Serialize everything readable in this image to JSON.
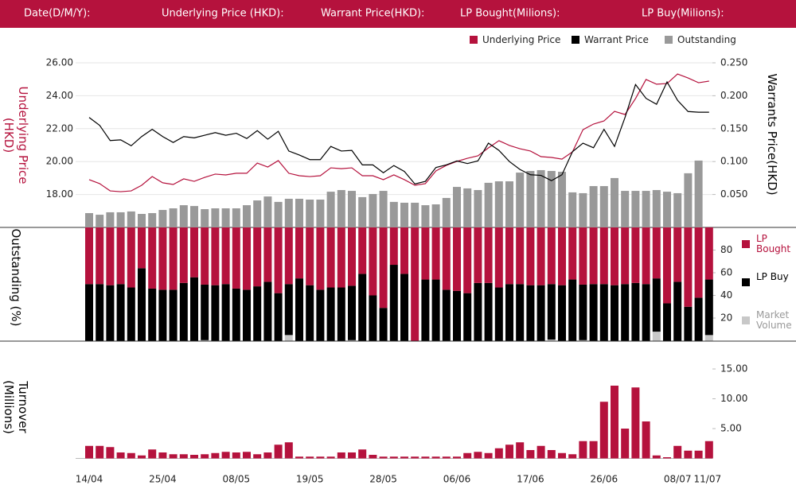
{
  "header": {
    "labels": [
      "Date(D/M/Y):",
      "Underlying Price (HKD):",
      "Warrant  Price(HKD):",
      "LP Bought(Milions):",
      "LP Buy(Milions):"
    ]
  },
  "chart_data": [
    {
      "type": "combo",
      "y_label": "Underlying Price (HKD)",
      "y2_label": "Warrants  Price(HKD)",
      "ylim": [
        16,
        26
      ],
      "yticks": [
        {
          "value": 18,
          "label": "18.00"
        },
        {
          "value": 20,
          "label": "20.00"
        },
        {
          "value": 22,
          "label": "22.00"
        },
        {
          "value": 24,
          "label": "24.00"
        },
        {
          "value": 26,
          "label": "26.00"
        }
      ],
      "y2lim": [
        0,
        0.25
      ],
      "y2ticks": [
        {
          "value": 0.05,
          "label": "0.050"
        },
        {
          "value": 0.1,
          "label": "0.100"
        },
        {
          "value": 0.15,
          "label": "0.150"
        },
        {
          "value": 0.2,
          "label": "0.200"
        },
        {
          "value": 0.25,
          "label": "0.250"
        }
      ],
      "y3lim": [
        0,
        100
      ],
      "grid": true,
      "series": [
        {
          "name": "Underlying Price",
          "color": "#b5123d",
          "kind": "line",
          "values": [
            18.9,
            18.66,
            18.22,
            18.17,
            18.22,
            18.56,
            19.09,
            18.71,
            18.61,
            18.95,
            18.8,
            19.04,
            19.24,
            19.19,
            19.29,
            19.29,
            19.91,
            19.67,
            20.06,
            19.29,
            19.14,
            19.09,
            19.14,
            19.62,
            19.57,
            19.62,
            19.14,
            19.14,
            18.9,
            19.19,
            18.9,
            18.56,
            18.66,
            19.43,
            19.77,
            20.01,
            20.2,
            20.35,
            20.83,
            21.27,
            20.98,
            20.78,
            20.64,
            20.3,
            20.25,
            20.15,
            20.59,
            21.94,
            22.28,
            22.47,
            23.05,
            22.86,
            23.83,
            24.99,
            24.7,
            24.74,
            25.32,
            25.08,
            24.79,
            24.89
          ]
        },
        {
          "name": "Warrant  Price",
          "color": "#000000",
          "kind": "line",
          "axis": "y2",
          "values": [
            0.167,
            0.155,
            0.132,
            0.133,
            0.124,
            0.138,
            0.149,
            0.138,
            0.129,
            0.138,
            0.136,
            0.14,
            0.144,
            0.14,
            0.143,
            0.135,
            0.147,
            0.134,
            0.146,
            0.116,
            0.11,
            0.103,
            0.103,
            0.123,
            0.116,
            0.117,
            0.095,
            0.095,
            0.083,
            0.094,
            0.085,
            0.066,
            0.07,
            0.091,
            0.095,
            0.101,
            0.097,
            0.101,
            0.128,
            0.117,
            0.1,
            0.088,
            0.08,
            0.079,
            0.071,
            0.08,
            0.115,
            0.128,
            0.121,
            0.149,
            0.123,
            0.167,
            0.217,
            0.196,
            0.187,
            0.221,
            0.193,
            0.176,
            0.175,
            0.175
          ]
        },
        {
          "name": "Outstanding",
          "color": "#999999",
          "kind": "bar",
          "axis": "y3",
          "values": [
            8.7,
            7.7,
            9.2,
            9.2,
            9.7,
            8.2,
            8.7,
            10.6,
            11.6,
            13.5,
            13.0,
            11.1,
            11.6,
            11.6,
            11.6,
            13.5,
            16.4,
            18.8,
            15.5,
            17.4,
            17.4,
            16.9,
            16.9,
            21.7,
            22.7,
            22.2,
            18.4,
            20.3,
            22.2,
            15.5,
            15.0,
            15.0,
            13.5,
            14.0,
            17.9,
            24.6,
            23.7,
            22.7,
            27.1,
            28.0,
            28.0,
            33.3,
            34.3,
            34.8,
            34.3,
            33.8,
            21.3,
            20.8,
            25.1,
            25.1,
            30.0,
            22.2,
            22.2,
            22.2,
            22.7,
            21.7,
            20.8,
            32.9,
            40.6,
            null
          ]
        }
      ]
    },
    {
      "type": "stacked",
      "y_label": "Outstanding (%)",
      "ylim": [
        0,
        100
      ],
      "yticks": [
        20,
        40,
        60,
        80
      ],
      "series": [
        {
          "name": "LP Bought",
          "color": "#b5123d",
          "values": [
            50,
            50,
            51,
            50,
            53,
            36,
            54,
            55,
            55,
            49,
            44,
            50.5,
            51,
            50,
            54,
            55,
            52,
            48,
            58,
            50,
            45,
            51,
            55,
            53,
            53,
            51.5,
            41,
            60,
            71,
            33,
            41,
            100,
            46,
            46,
            55,
            56,
            58,
            49,
            49,
            53,
            50,
            50,
            51,
            51,
            50,
            51,
            46,
            50.5,
            50,
            50,
            51,
            50,
            49,
            50,
            45,
            67,
            48,
            70,
            62,
            46
          ]
        },
        {
          "name": "LP Buy",
          "color": "#000000",
          "values": [
            50,
            50,
            49,
            50,
            47,
            64,
            46,
            45,
            45,
            51,
            56,
            49,
            49,
            50,
            46,
            45,
            48,
            52,
            42,
            45,
            55,
            49,
            45,
            47,
            47,
            48,
            59,
            40,
            29,
            67,
            59,
            0,
            54,
            54,
            45,
            44,
            42,
            51,
            51,
            47,
            50,
            50,
            49,
            49,
            49,
            49,
            54,
            49,
            50,
            50,
            49,
            50,
            51,
            50,
            47,
            33,
            52,
            30,
            38,
            49
          ]
        },
        {
          "name": "Market Volume",
          "color": "#c8c8c8",
          "values": [
            0,
            0,
            0,
            0,
            0,
            0,
            0,
            0,
            0,
            0,
            0,
            0.5,
            0,
            0,
            0,
            0,
            0,
            0,
            0,
            5,
            0,
            0,
            0,
            0,
            0,
            0.5,
            0,
            0,
            0,
            0,
            0,
            0,
            0,
            0,
            0,
            0,
            0,
            0,
            0,
            0,
            0,
            0,
            0,
            0,
            1,
            0,
            0,
            0.5,
            0,
            0,
            0,
            0,
            0,
            0,
            8,
            0,
            0,
            0,
            0,
            5
          ]
        }
      ]
    },
    {
      "type": "bar",
      "y_label": "Turnover (Millions)",
      "ylim": [
        0,
        17
      ],
      "yticks": [
        {
          "value": 5,
          "label": "5.00"
        },
        {
          "value": 10,
          "label": "10.00"
        },
        {
          "value": 15,
          "label": "15.00"
        }
      ],
      "color": "#b5123d",
      "categories": [
        "14/04",
        null,
        null,
        null,
        null,
        null,
        null,
        "25/04",
        null,
        null,
        null,
        null,
        null,
        null,
        "08/05",
        null,
        null,
        null,
        null,
        null,
        null,
        "19/05",
        null,
        null,
        null,
        null,
        null,
        null,
        "28/05",
        null,
        null,
        null,
        null,
        null,
        null,
        "06/06",
        null,
        null,
        null,
        null,
        null,
        null,
        "17/06",
        null,
        null,
        null,
        null,
        null,
        null,
        "26/06",
        null,
        null,
        null,
        null,
        null,
        null,
        "08/07",
        null,
        null,
        "11/07"
      ],
      "values": [
        2.1,
        2.1,
        1.9,
        1.0,
        0.9,
        0.5,
        1.5,
        1.0,
        0.7,
        0.7,
        0.6,
        0.7,
        0.9,
        1.1,
        1.0,
        1.1,
        0.7,
        1.0,
        2.3,
        2.7,
        0.3,
        0.3,
        0.3,
        0.3,
        1.0,
        1.0,
        1.5,
        0.6,
        0.3,
        0.3,
        0.3,
        0.3,
        0.3,
        0.3,
        0.3,
        0.3,
        0.9,
        1.1,
        0.9,
        1.7,
        2.3,
        2.7,
        1.4,
        2.1,
        1.4,
        0.9,
        0.7,
        2.9,
        2.9,
        9.5,
        12.2,
        5.0,
        11.9,
        6.2,
        0.5,
        0.2,
        2.1,
        1.3,
        1.3,
        2.9
      ]
    }
  ]
}
